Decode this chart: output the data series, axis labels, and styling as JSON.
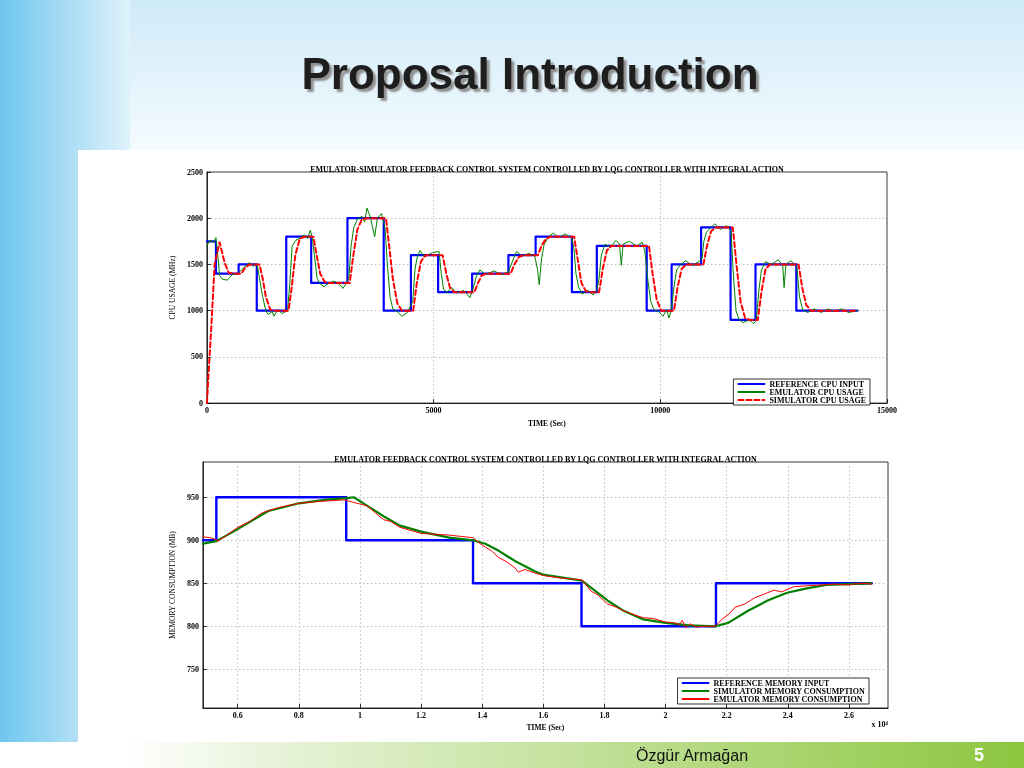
{
  "chart_data": [
    {
      "type": "line",
      "title": "EMULATOR-SIMULATOR FEEDBACK CONTROL SYSTEM CONTROLLED BY LQG CONTROLLER WITH INTEGRAL ACTION",
      "xlabel": "TIME (Sec)",
      "ylabel": "CPU USAGE (MHz)",
      "annotations": [
        "Proposal Introduction"
      ],
      "xlim": [
        0,
        15000
      ],
      "xticks": [
        0,
        5000,
        10000,
        15000
      ],
      "ylim": [
        0,
        2500
      ],
      "yticks": [
        0,
        500,
        1000,
        1500,
        2000,
        2500
      ],
      "grid": true,
      "legend": "bottom right",
      "series": [
        {
          "name": "REFERENCE CPU INPUT",
          "type": "step",
          "color": "#0000ff",
          "x": [
            0,
            200,
            700,
            1100,
            1750,
            2300,
            3100,
            3900,
            4500,
            5100,
            5850,
            6650,
            7250,
            8050,
            8600,
            9700,
            10250,
            10900,
            11550,
            12100,
            13000,
            14350
          ],
          "values": [
            1750,
            1400,
            1500,
            1000,
            1800,
            1300,
            2000,
            1000,
            1600,
            1200,
            1400,
            1600,
            1800,
            1200,
            1700,
            1000,
            1500,
            1900,
            900,
            1500,
            1000,
            1000
          ]
        },
        {
          "name": "EMULATOR CPU USAGE",
          "type": "line",
          "color": "#008000",
          "x": [
            0,
            60,
            150,
            200,
            240,
            280,
            340,
            450,
            560,
            680,
            760,
            870,
            940,
            1020,
            1110,
            1160,
            1230,
            1300,
            1350,
            1440,
            1480,
            1560,
            1660,
            1780,
            1830,
            1880,
            1960,
            2060,
            2150,
            2220,
            2280,
            2330,
            2370,
            2430,
            2500,
            2580,
            2700,
            2800,
            2940,
            3000,
            3080,
            3130,
            3180,
            3240,
            3320,
            3420,
            3480,
            3530,
            3600,
            3700,
            3760,
            3850,
            3930,
            3980,
            4040,
            4100,
            4200,
            4300,
            4420,
            4540,
            4590,
            4640,
            4700,
            4800,
            4980,
            5120,
            5170,
            5220,
            5300,
            5400,
            5500,
            5660,
            5800,
            5860,
            5950,
            6020,
            6150,
            6330,
            6500,
            6650,
            6760,
            6830,
            6950,
            7100,
            7230,
            7290,
            7330,
            7380,
            7440,
            7540,
            7640,
            7760,
            7900,
            8040,
            8090,
            8140,
            8200,
            8280,
            8400,
            8520,
            8600,
            8650,
            8700,
            8780,
            8900,
            9020,
            9100,
            9140,
            9180,
            9320,
            9480,
            9600,
            9660,
            9720,
            9790,
            9860,
            9960,
            10060,
            10140,
            10190,
            10240,
            10300,
            10360,
            10450,
            10560,
            10700,
            10850,
            10920,
            10960,
            11020,
            11120,
            11200,
            11330,
            11460,
            11560,
            11610,
            11670,
            11730,
            11820,
            11960,
            12060,
            12120,
            12170,
            12230,
            12320,
            12450,
            12600,
            12700,
            12730,
            12770,
            12880,
            13010,
            13070,
            13140,
            13250,
            13400,
            13550,
            13700,
            13850,
            14000,
            14150,
            14350
          ],
          "values": [
            1700,
            1760,
            1740,
            1790,
            1600,
            1380,
            1340,
            1330,
            1390,
            1400,
            1440,
            1490,
            1520,
            1480,
            1500,
            1350,
            1150,
            1000,
            960,
            990,
            940,
            1010,
            970,
            1000,
            1300,
            1700,
            1760,
            1790,
            1820,
            1780,
            1870,
            1780,
            1600,
            1350,
            1290,
            1260,
            1300,
            1320,
            1280,
            1240,
            1300,
            1350,
            1700,
            1900,
            1990,
            2020,
            1960,
            2110,
            2020,
            1800,
            2000,
            2050,
            1900,
            1500,
            1150,
            1020,
            990,
            940,
            980,
            1100,
            1450,
            1580,
            1650,
            1580,
            1630,
            1640,
            1400,
            1230,
            1200,
            1250,
            1190,
            1220,
            1140,
            1220,
            1380,
            1440,
            1390,
            1430,
            1390,
            1420,
            1560,
            1640,
            1590,
            1620,
            1590,
            1450,
            1280,
            1560,
            1720,
            1800,
            1840,
            1790,
            1830,
            1790,
            1700,
            1400,
            1250,
            1180,
            1220,
            1170,
            1220,
            1350,
            1600,
            1720,
            1680,
            1760,
            1720,
            1490,
            1720,
            1750,
            1700,
            1740,
            1640,
            1350,
            1100,
            1010,
            990,
            940,
            1010,
            920,
            1000,
            1250,
            1440,
            1500,
            1540,
            1490,
            1530,
            1560,
            1750,
            1850,
            1900,
            1940,
            1880,
            1920,
            1860,
            1400,
            1000,
            910,
            870,
            900,
            860,
            900,
            1200,
            1440,
            1530,
            1500,
            1550,
            1490,
            1250,
            1500,
            1540,
            1480,
            1150,
            1010,
            980,
            1020,
            980,
            1020,
            990,
            1020,
            980,
            1000
          ]
        },
        {
          "name": "SIMULATOR CPU USAGE",
          "type": "line",
          "line_style": "dashed",
          "color": "#ff0000",
          "x": [
            0,
            100,
            170,
            280,
            390,
            480,
            600,
            760,
            850,
            950,
            1160,
            1230,
            1300,
            1400,
            1500,
            1800,
            1870,
            1950,
            2050,
            2150,
            2350,
            2420,
            2500,
            2600,
            2700,
            3150,
            3230,
            3320,
            3420,
            3550,
            3950,
            4020,
            4100,
            4200,
            4300,
            4550,
            4630,
            4720,
            4820,
            5200,
            5280,
            5360,
            5450,
            5900,
            5980,
            6060,
            6150,
            6700,
            6780,
            6880,
            6980,
            7300,
            7380,
            7480,
            7580,
            8100,
            8180,
            8260,
            8360,
            8450,
            8650,
            8730,
            8820,
            8920,
            9750,
            9830,
            9920,
            10020,
            10300,
            10380,
            10470,
            10570,
            10950,
            11030,
            11120,
            11220,
            11600,
            11680,
            11770,
            11870,
            11970,
            12150,
            12230,
            12320,
            12420,
            13050,
            13130,
            13220,
            13320,
            14350
          ],
          "values": [
            0,
            850,
            1500,
            1740,
            1520,
            1410,
            1400,
            1400,
            1470,
            1500,
            1500,
            1350,
            1150,
            1010,
            1000,
            1000,
            1250,
            1600,
            1780,
            1800,
            1800,
            1600,
            1400,
            1310,
            1300,
            1300,
            1600,
            1880,
            1990,
            2000,
            2000,
            1700,
            1350,
            1080,
            1000,
            1000,
            1300,
            1530,
            1600,
            1600,
            1400,
            1250,
            1200,
            1200,
            1300,
            1380,
            1400,
            1400,
            1500,
            1580,
            1600,
            1600,
            1700,
            1780,
            1800,
            1800,
            1550,
            1300,
            1210,
            1200,
            1200,
            1450,
            1650,
            1700,
            1700,
            1400,
            1120,
            1000,
            1000,
            1250,
            1450,
            1500,
            1500,
            1700,
            1860,
            1900,
            1900,
            1500,
            1100,
            920,
            900,
            900,
            1200,
            1450,
            1500,
            1500,
            1250,
            1060,
            1000,
            1000
          ]
        }
      ]
    },
    {
      "type": "line",
      "title": "EMULATOR FEEDBACK CONTROL SYSTEM CONTROLLED BY LQG CONTROLLER WITH INTEGRAL ACTION",
      "xlabel": "TIME (Sec)",
      "ylabel": "MEMORY CONSUMPTION (MB)",
      "annotations": [
        "x 10⁴",
        "Özgür Armağan",
        "5"
      ],
      "xlim": [
        0.486,
        2.728
      ],
      "xticks": [
        0.6,
        0.8,
        1,
        1.2,
        1.4,
        1.6,
        1.8,
        2,
        2.2,
        2.4,
        2.6
      ],
      "ylim": [
        705,
        991
      ],
      "yticks": [
        750,
        800,
        850,
        900,
        950
      ],
      "grid": true,
      "legend": "bottom right",
      "series": [
        {
          "name": "REFERENCE MEMORY INPUT",
          "type": "step",
          "color": "#0000ff",
          "x": [
            0.486,
            0.53,
            0.955,
            1.37,
            1.725,
            2.165,
            2.675
          ],
          "values": [
            900,
            950,
            900,
            850,
            800,
            850,
            850
          ]
        },
        {
          "name": "SIMULATOR MEMORY CONSUMPTION",
          "type": "line",
          "color": "#008000",
          "x": [
            0.486,
            0.53,
            0.6,
            0.7,
            0.8,
            0.884,
            0.956,
            0.98,
            1.024,
            1.077,
            1.131,
            1.2,
            1.292,
            1.37,
            1.41,
            1.453,
            1.507,
            1.572,
            1.6,
            1.726,
            1.756,
            1.81,
            1.863,
            1.927,
            2.0,
            2.077,
            2.163,
            2.205,
            2.27,
            2.334,
            2.398,
            2.462,
            2.526,
            2.596,
            2.673
          ],
          "values": [
            896,
            899,
            913,
            934,
            943,
            947,
            949,
            950,
            940,
            928,
            917,
            910,
            903,
            900,
            896,
            888,
            876,
            864,
            860,
            853,
            845,
            830,
            818,
            808,
            804,
            801,
            800,
            804,
            818,
            830,
            839,
            844,
            848,
            849,
            850
          ]
        },
        {
          "name": "EMULATOR MEMORY CONSUMPTION",
          "type": "line",
          "color": "#ff0000",
          "x": [
            0.486,
            0.51,
            0.528,
            0.535,
            0.56,
            0.6,
            0.64,
            0.68,
            0.733,
            0.8,
            0.862,
            0.948,
            0.98,
            1.024,
            1.05,
            1.077,
            1.1,
            1.131,
            1.2,
            1.292,
            1.37,
            1.39,
            1.41,
            1.43,
            1.453,
            1.48,
            1.507,
            1.518,
            1.54,
            1.572,
            1.6,
            1.66,
            1.726,
            1.756,
            1.78,
            1.81,
            1.84,
            1.863,
            1.9,
            1.927,
            1.96,
            2.0,
            2.03,
            2.045,
            2.055,
            2.066,
            2.08,
            2.1,
            2.12,
            2.163,
            2.184,
            2.21,
            2.227,
            2.26,
            2.291,
            2.32,
            2.355,
            2.38,
            2.419,
            2.46,
            2.505,
            2.55,
            2.6,
            2.612,
            2.65,
            2.673
          ],
          "values": [
            904,
            903,
            901,
            899,
            905,
            915,
            922,
            932,
            938,
            943,
            945,
            947,
            944,
            940,
            932,
            924,
            922,
            915,
            908,
            906,
            903,
            897,
            892,
            888,
            880,
            875,
            868,
            863,
            866,
            862,
            859,
            856,
            854,
            841,
            836,
            826,
            822,
            818,
            813,
            810,
            809,
            805,
            804,
            802,
            807,
            798,
            803,
            799,
            800,
            800,
            808,
            815,
            822,
            826,
            833,
            837,
            842,
            840,
            846,
            847,
            848,
            849,
            848,
            849,
            850,
            849
          ]
        }
      ]
    }
  ]
}
